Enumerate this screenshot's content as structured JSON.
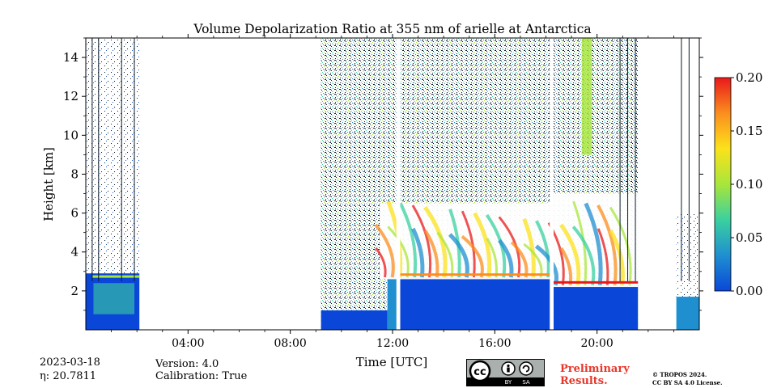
{
  "chart_data": {
    "type": "heatmap",
    "title": "Volume Depolarization Ratio at 355 nm of arielle at Antarctica",
    "xlabel": "Time [UTC]",
    "ylabel": "Height [km]",
    "xlim": [
      0,
      24
    ],
    "ylim": [
      0.0,
      15.0
    ],
    "x_ticks": [
      4,
      8,
      12,
      16,
      20
    ],
    "x_tick_labels": [
      "04:00",
      "08:00",
      "12:00",
      "16:00",
      "20:00"
    ],
    "y_ticks": [
      2,
      4,
      6,
      8,
      10,
      12,
      14
    ],
    "y_tick_labels": [
      "2",
      "4",
      "6",
      "8",
      "10",
      "12",
      "14"
    ],
    "colorbar": {
      "range": [
        0.0,
        0.2
      ],
      "ticks": [
        0.0,
        0.05,
        0.1,
        0.15,
        0.2
      ],
      "tick_labels": [
        "0.00",
        "0.05",
        "0.10",
        "0.15",
        "0.20"
      ],
      "colors": [
        "#0a47d8",
        "#1f8fd0",
        "#3ad0a0",
        "#a8e63a",
        "#fbe21b",
        "#fb8e1e",
        "#e8191b"
      ]
    },
    "regions": [
      {
        "t0": 0.0,
        "t1": 2.1,
        "h0": 0.0,
        "h1": 2.9,
        "level": 0.01,
        "kind": "aerosol"
      },
      {
        "t0": 9.2,
        "t1": 11.8,
        "h0": 0.0,
        "h1": 1.0,
        "level": 0.01,
        "kind": "aerosol"
      },
      {
        "t0": 11.8,
        "t1": 12.2,
        "h0": 0.0,
        "h1": 3.5,
        "level": 0.02,
        "kind": "aerosol"
      },
      {
        "t0": 12.3,
        "t1": 18.2,
        "h0": 0.0,
        "h1": 2.7,
        "level": 0.01,
        "kind": "aerosol"
      },
      {
        "t0": 18.3,
        "t1": 21.6,
        "h0": 0.0,
        "h1": 2.3,
        "level": 0.01,
        "kind": "aerosol"
      },
      {
        "t0": 23.1,
        "t1": 24.0,
        "h0": 0.0,
        "h1": 1.7,
        "level": 0.02,
        "kind": "aerosol"
      },
      {
        "t0": 11.5,
        "t1": 18.2,
        "h0": 2.6,
        "h1": 6.5,
        "level": 0.2,
        "kind": "ice-cloud"
      },
      {
        "t0": 18.3,
        "t1": 21.6,
        "h0": 2.2,
        "h1": 7.0,
        "level": 0.2,
        "kind": "ice-cloud"
      }
    ]
  },
  "footer": {
    "date": "2023-03-18",
    "eta": "η: 20.7811",
    "version": "Version: 4.0",
    "calibration": "Calibration: True",
    "preliminary_1": "Preliminary",
    "preliminary_2": "Results.",
    "copyright_1": "© TROPOS 2024.",
    "copyright_2": "CC BY SA 4.0 License.",
    "cc_label": "cc",
    "by_label": "BY",
    "sa_label": "SA"
  }
}
